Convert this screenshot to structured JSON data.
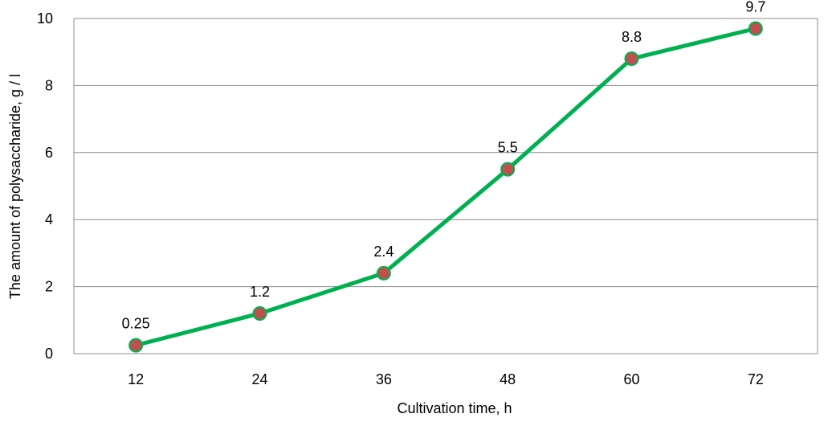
{
  "chart_data": {
    "type": "line",
    "title": "",
    "xlabel": "Cultivation time, h",
    "ylabel": "The amount of polysaccharide, g / l",
    "categories": [
      "12",
      "24",
      "36",
      "48",
      "60",
      "72"
    ],
    "series": [
      {
        "values": [
          0.25,
          1.2,
          2.4,
          5.5,
          8.8,
          9.7
        ],
        "data_labels": [
          "0.25",
          "1.2",
          "2.4",
          "5.5",
          "8.8",
          "9.7"
        ]
      }
    ],
    "ylim": [
      0,
      10
    ],
    "yticks": [
      "0",
      "2",
      "4",
      "6",
      "8",
      "10"
    ],
    "grid": true,
    "legend": "none",
    "colors": {
      "line": "#00b050",
      "marker_fill": "#c0504d",
      "marker_stroke": "#00b050",
      "grid": "#8c8c8c"
    }
  }
}
